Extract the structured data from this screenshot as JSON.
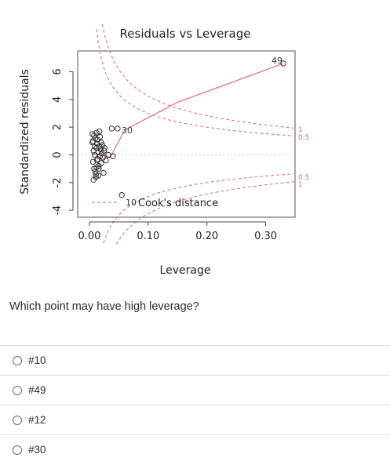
{
  "chart_data": {
    "type": "scatter",
    "title": "Residuals vs Leverage",
    "xlabel": "Leverage",
    "ylabel": "Standardized residuals",
    "xlim": [
      -0.02,
      0.35
    ],
    "ylim": [
      -4.5,
      7.5
    ],
    "x_ticks": [
      0.0,
      0.1,
      0.2,
      0.3
    ],
    "x_tick_labels": [
      "0.00",
      "0.10",
      "0.20",
      "0.30"
    ],
    "y_ticks": [
      -4,
      -2,
      0,
      2,
      4,
      6
    ],
    "y_tick_labels": [
      "-4",
      "-2",
      "0",
      "2",
      "4",
      "6"
    ],
    "points": [
      {
        "x": 0.005,
        "y": 1.5
      },
      {
        "x": 0.007,
        "y": 0.3
      },
      {
        "x": 0.006,
        "y": -0.5
      },
      {
        "x": 0.008,
        "y": -1.0
      },
      {
        "x": 0.005,
        "y": 0.9
      },
      {
        "x": 0.009,
        "y": 0.0
      },
      {
        "x": 0.01,
        "y": 1.2
      },
      {
        "x": 0.011,
        "y": -1.4
      },
      {
        "x": 0.012,
        "y": 0.5
      },
      {
        "x": 0.007,
        "y": -1.8
      },
      {
        "x": 0.013,
        "y": 0.8
      },
      {
        "x": 0.014,
        "y": -0.3
      },
      {
        "x": 0.006,
        "y": 1.0
      },
      {
        "x": 0.015,
        "y": 0.2
      },
      {
        "x": 0.016,
        "y": -0.8
      },
      {
        "x": 0.008,
        "y": 1.4
      },
      {
        "x": 0.017,
        "y": 0.6
      },
      {
        "x": 0.01,
        "y": -1.2
      },
      {
        "x": 0.018,
        "y": -0.1
      },
      {
        "x": 0.012,
        "y": 1.6
      },
      {
        "x": 0.019,
        "y": 0.4
      },
      {
        "x": 0.02,
        "y": -0.6
      },
      {
        "x": 0.011,
        "y": -1.6
      },
      {
        "x": 0.014,
        "y": 1.1
      },
      {
        "x": 0.021,
        "y": 0.1
      },
      {
        "x": 0.016,
        "y": -1.0
      },
      {
        "x": 0.022,
        "y": 0.7
      },
      {
        "x": 0.013,
        "y": -0.4
      },
      {
        "x": 0.024,
        "y": -1.3
      },
      {
        "x": 0.018,
        "y": 1.3
      },
      {
        "x": 0.025,
        "y": 0.3
      },
      {
        "x": 0.009,
        "y": 0.6
      },
      {
        "x": 0.015,
        "y": -1.5
      },
      {
        "x": 0.02,
        "y": 0.9
      },
      {
        "x": 0.023,
        "y": -0.2
      },
      {
        "x": 0.026,
        "y": 0.5
      },
      {
        "x": 0.012,
        "y": -0.9
      },
      {
        "x": 0.017,
        "y": 1.7
      },
      {
        "x": 0.028,
        "y": -0.4
      },
      {
        "x": 0.032,
        "y": 0.0
      },
      {
        "x": 0.04,
        "y": -0.1
      },
      {
        "x": 0.038,
        "y": 1.9
      }
    ],
    "labeled_points": [
      {
        "label": "30",
        "x": 0.048,
        "y": 1.9
      },
      {
        "label": "49",
        "x": 0.33,
        "y": 6.6
      },
      {
        "label": "10",
        "x": 0.055,
        "y": -2.9
      }
    ],
    "legend": "Cook's distance",
    "cooks_levels": [
      "0.5",
      "1"
    ],
    "point_labels": {
      "p30": "30",
      "p49": "49",
      "p10": "10"
    },
    "right_labels": {
      "upper_1": "1",
      "upper_05": "0.5",
      "lower_05": "0.5",
      "lower_1": "1"
    }
  },
  "question": "Which point may have high leverage?",
  "options": [
    "#10",
    "#49",
    "#12",
    "#30"
  ]
}
